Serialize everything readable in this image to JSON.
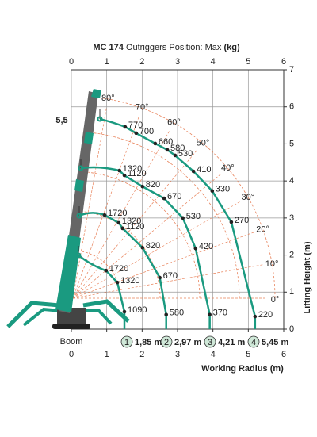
{
  "chart_data": {
    "type": "load_chart",
    "title": "MC 174",
    "subtitle": "Outriggers Position: Max",
    "unit": "(kg)",
    "annotation": "5,5",
    "xlabel": "Working Radius (m)",
    "ylabel": "Lifting Height (m)",
    "xlim": [
      0,
      6
    ],
    "xticks": [
      0,
      1,
      2,
      3,
      4,
      5,
      6
    ],
    "ylim": [
      0,
      7
    ],
    "yticks": [
      0,
      1,
      2,
      3,
      4,
      5,
      6,
      7
    ],
    "grid": true,
    "angles": [
      {
        "value": 0,
        "label": "0°"
      },
      {
        "value": 10,
        "label": "10°"
      },
      {
        "value": 20,
        "label": "20°"
      },
      {
        "value": 30,
        "label": "30°"
      },
      {
        "value": 40,
        "label": "40°"
      },
      {
        "value": 50,
        "label": "50°"
      },
      {
        "value": 60,
        "label": "60°"
      },
      {
        "value": 70,
        "label": "70°"
      },
      {
        "value": 80,
        "label": "80°"
      }
    ],
    "angle_color": "#e8825a",
    "boom_label": "Boom",
    "series": [
      {
        "name": "1,85 m",
        "number": 1,
        "color": "#1a9a80",
        "x": [
          0.98,
          1.3,
          1.5
        ],
        "y": [
          1.58,
          1.26,
          0.47
        ],
        "loads": [
          1720,
          1320,
          1090
        ]
      },
      {
        "name": "2,97 m",
        "number": 2,
        "color": "#1a9a80",
        "x": [
          0.94,
          1.34,
          1.45,
          2.01,
          2.5,
          2.68
        ],
        "y": [
          3.08,
          2.87,
          2.72,
          2.2,
          1.39,
          0.39
        ],
        "loads": [
          1720,
          1320,
          1120,
          820,
          670,
          580
        ]
      },
      {
        "name": "4,21 m",
        "number": 3,
        "color": "#1a9a80",
        "x": [
          1.36,
          1.5,
          2.01,
          2.62,
          3.15,
          3.51,
          3.91
        ],
        "y": [
          4.28,
          4.15,
          3.85,
          3.53,
          3.0,
          2.18,
          0.39
        ],
        "loads": [
          1320,
          1120,
          820,
          670,
          530,
          420,
          370
        ]
      },
      {
        "name": "5,45 m",
        "number": 4,
        "color": "#1a9a80",
        "x": [
          1.52,
          1.83,
          2.37,
          2.71,
          2.93,
          3.45,
          3.98,
          4.52,
          5.19
        ],
        "y": [
          5.46,
          5.29,
          5.01,
          4.84,
          4.69,
          4.26,
          3.73,
          2.89,
          0.34
        ],
        "loads": [
          770,
          700,
          660,
          580,
          530,
          410,
          330,
          270,
          220
        ]
      }
    ]
  }
}
